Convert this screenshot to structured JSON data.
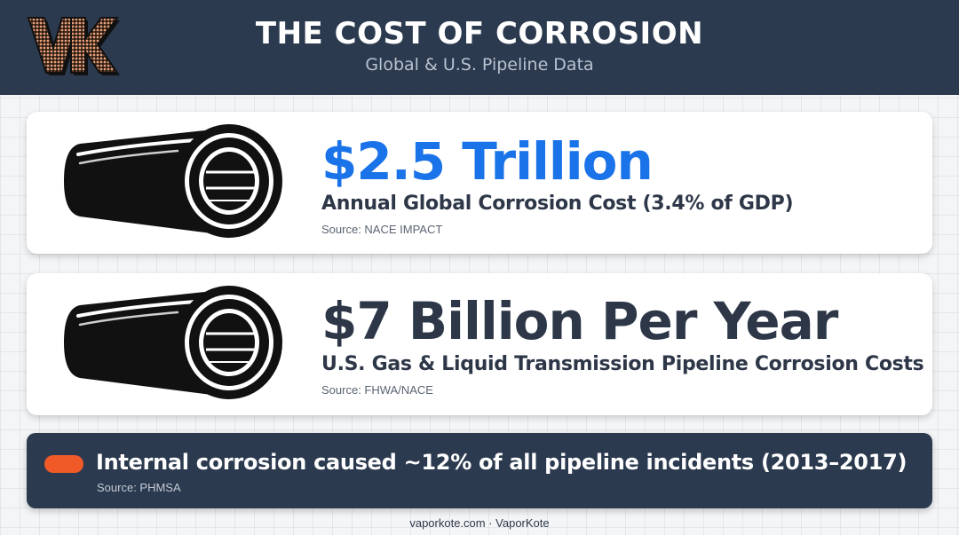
{
  "header": {
    "logo_text": "VK",
    "title": "THE COST OF CORROSION",
    "subtitle": "Global & U.S. Pipeline Data"
  },
  "stats": [
    {
      "value": "$2.5 Trillion",
      "description": "Annual Global Corrosion Cost (3.4% of GDP)",
      "source": "Source: NACE IMPACT",
      "color": "#1a73e8",
      "icon": "pipe-icon"
    },
    {
      "value": "$7 Billion Per Year",
      "description": "U.S. Gas & Liquid Transmission Pipeline Corrosion Costs",
      "source": "Source: FHWA/NACE",
      "color": "#2d3748",
      "icon": "pipe-icon"
    }
  ],
  "callout": {
    "text": "Internal corrosion caused ~12% of all pipeline incidents (2013–2017)",
    "source": "Source: PHMSA",
    "accent": "#f05a28"
  },
  "footer": {
    "text": "vaporkote.com · VaporKote"
  },
  "colors": {
    "header_bg": "#2c3a4f",
    "accent_blue": "#1a73e8",
    "accent_orange": "#f05a28"
  }
}
